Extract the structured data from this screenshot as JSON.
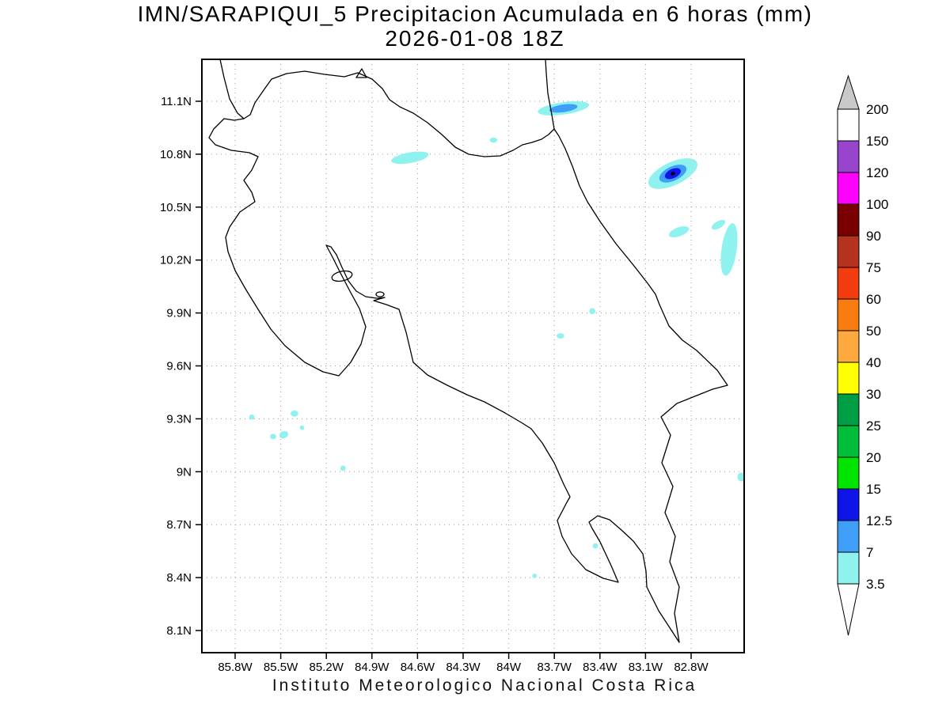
{
  "title": {
    "line1": "IMN/SARAPIQUI_5 Precipitacion Acumulada en 6 horas (mm)",
    "line2": "2026-01-08 18Z"
  },
  "footer": "Instituto  Meteorologico  Nacional  Costa  Rica",
  "chart_data": {
    "type": "heatmap",
    "subtype": "filled-contour-precipitation-map",
    "region": "Costa Rica",
    "title": "IMN/SARAPIQUI_5 Precipitacion Acumulada en 6 horas (mm)",
    "valid_time": "2026-01-08 18Z",
    "units": "mm",
    "grid": "dotted lat/lon graticule every 0.3 degrees",
    "x_axis": {
      "kind": "longitude",
      "ticks": [
        "85.8W",
        "85.5W",
        "85.2W",
        "84.9W",
        "84.6W",
        "84.3W",
        "84W",
        "83.7W",
        "83.4W",
        "83.1W",
        "82.8W"
      ],
      "values_w": [
        85.8,
        85.5,
        85.2,
        84.9,
        84.6,
        84.3,
        84.0,
        83.7,
        83.4,
        83.1,
        82.8
      ],
      "range_w": [
        86.02,
        82.45
      ]
    },
    "y_axis": {
      "kind": "latitude",
      "ticks": [
        "11.1N",
        "10.8N",
        "10.5N",
        "10.2N",
        "9.9N",
        "9.6N",
        "9.3N",
        "9N",
        "8.7N",
        "8.4N",
        "8.1N"
      ],
      "values_n": [
        11.1,
        10.8,
        10.5,
        10.2,
        9.9,
        9.6,
        9.3,
        9.0,
        8.7,
        8.4,
        8.1
      ],
      "range_n": [
        7.97,
        11.34
      ]
    },
    "colorbar": {
      "position": "right",
      "labels": [
        "200",
        "150",
        "120",
        "100",
        "90",
        "75",
        "60",
        "50",
        "40",
        "30",
        "25",
        "20",
        "15",
        "12.5",
        "7",
        "3.5"
      ],
      "segment_colors_top_to_bottom": [
        "#FFFFFF",
        "#9944CC",
        "#FF00FF",
        "#7A0000",
        "#B5321E",
        "#F23B0F",
        "#F97C10",
        "#FDA93F",
        "#FFFF00",
        "#009E44",
        "#00BE3A",
        "#00E400",
        "#0F14E9",
        "#3F9FF8",
        "#8FF2EF"
      ],
      "over_color": "#C9C9C9",
      "under_color": "#FFFFFF"
    },
    "levels_mm": [
      3.5,
      7,
      12.5,
      15,
      20,
      25,
      30,
      40,
      50,
      60,
      75,
      90,
      100,
      120,
      150,
      200
    ],
    "precip_cells": [
      {
        "lon_w": 83.64,
        "lat_n": 11.06,
        "w_deg": 0.34,
        "h_deg": 0.07,
        "rot_deg": -8,
        "intensity": 2
      },
      {
        "lon_w": 84.65,
        "lat_n": 10.78,
        "w_deg": 0.25,
        "h_deg": 0.06,
        "rot_deg": -10,
        "intensity": 1
      },
      {
        "lon_w": 82.92,
        "lat_n": 10.69,
        "w_deg": 0.35,
        "h_deg": 0.13,
        "rot_deg": -25,
        "intensity": 3
      },
      {
        "lon_w": 82.88,
        "lat_n": 10.36,
        "w_deg": 0.14,
        "h_deg": 0.05,
        "rot_deg": -20,
        "intensity": 1
      },
      {
        "lon_w": 82.55,
        "lat_n": 10.26,
        "w_deg": 0.1,
        "h_deg": 0.3,
        "rot_deg": 8,
        "intensity": 1
      },
      {
        "lon_w": 82.62,
        "lat_n": 10.4,
        "w_deg": 0.1,
        "h_deg": 0.04,
        "rot_deg": -30,
        "intensity": 1
      },
      {
        "lon_w": 84.1,
        "lat_n": 10.88,
        "w_deg": 0.05,
        "h_deg": 0.03,
        "rot_deg": 0,
        "intensity": 1
      },
      {
        "lon_w": 83.45,
        "lat_n": 9.91,
        "w_deg": 0.04,
        "h_deg": 0.035,
        "rot_deg": 0,
        "intensity": 1
      },
      {
        "lon_w": 83.66,
        "lat_n": 9.77,
        "w_deg": 0.05,
        "h_deg": 0.03,
        "rot_deg": 0,
        "intensity": 1
      },
      {
        "lon_w": 85.69,
        "lat_n": 9.31,
        "w_deg": 0.035,
        "h_deg": 0.03,
        "rot_deg": 0,
        "intensity": 1
      },
      {
        "lon_w": 85.41,
        "lat_n": 9.33,
        "w_deg": 0.05,
        "h_deg": 0.035,
        "rot_deg": 0,
        "intensity": 1
      },
      {
        "lon_w": 85.48,
        "lat_n": 9.21,
        "w_deg": 0.06,
        "h_deg": 0.04,
        "rot_deg": -20,
        "intensity": 1
      },
      {
        "lon_w": 85.55,
        "lat_n": 9.2,
        "w_deg": 0.04,
        "h_deg": 0.03,
        "rot_deg": 0,
        "intensity": 1
      },
      {
        "lon_w": 85.36,
        "lat_n": 9.25,
        "w_deg": 0.03,
        "h_deg": 0.025,
        "rot_deg": 0,
        "intensity": 1
      },
      {
        "lon_w": 85.09,
        "lat_n": 9.02,
        "w_deg": 0.035,
        "h_deg": 0.03,
        "rot_deg": 0,
        "intensity": 1
      },
      {
        "lon_w": 82.47,
        "lat_n": 8.97,
        "w_deg": 0.05,
        "h_deg": 0.05,
        "rot_deg": 0,
        "intensity": 1
      },
      {
        "lon_w": 83.43,
        "lat_n": 8.58,
        "w_deg": 0.035,
        "h_deg": 0.03,
        "rot_deg": 0,
        "intensity": 1
      },
      {
        "lon_w": 83.83,
        "lat_n": 8.41,
        "w_deg": 0.03,
        "h_deg": 0.025,
        "rot_deg": 0,
        "intensity": 1
      }
    ]
  },
  "map_style": {
    "grid_color": "#999999",
    "coast_color": "#000000",
    "intensity_colors": {
      "c1": "#8FF2EF",
      "c2": "#3F9FF8",
      "c3": "#0F14E9",
      "max_marker": "#000000"
    }
  }
}
